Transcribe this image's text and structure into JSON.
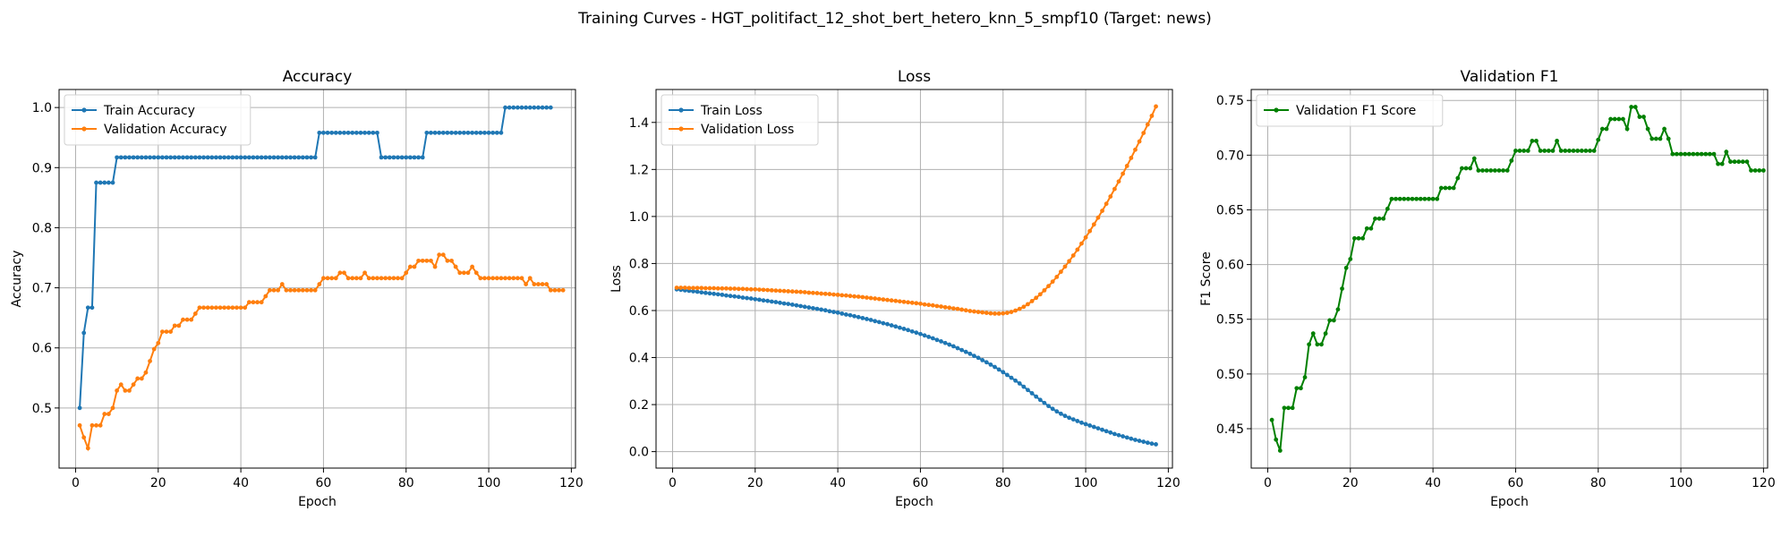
{
  "title": "Training Curves - HGT_politifact_12_shot_bert_hetero_knn_5_smpf10 (Target: news)",
  "chart_data": [
    {
      "type": "line",
      "title": "Accuracy",
      "xlabel": "Epoch",
      "ylabel": "Accuracy",
      "xlim": [
        -4,
        121
      ],
      "ylim": [
        0.4,
        1.03
      ],
      "xticks": [
        0,
        20,
        40,
        60,
        80,
        100,
        120
      ],
      "yticks": [
        0.5,
        0.6,
        0.7,
        0.8,
        0.9,
        1.0
      ],
      "ytick_labels": [
        "0.5",
        "0.6",
        "0.7",
        "0.8",
        "0.9",
        "1.0"
      ],
      "grid": true,
      "legend": "upper-left",
      "x_start": 1,
      "series": [
        {
          "name": "Train Accuracy",
          "color": "#1f77b4",
          "values": [
            0.5,
            0.625,
            0.667,
            0.667,
            0.875,
            0.875,
            0.875,
            0.875,
            0.875,
            0.917,
            0.917,
            0.917,
            0.917,
            0.917,
            0.917,
            0.917,
            0.917,
            0.917,
            0.917,
            0.917,
            0.917,
            0.917,
            0.917,
            0.917,
            0.917,
            0.917,
            0.917,
            0.917,
            0.917,
            0.917,
            0.917,
            0.917,
            0.917,
            0.917,
            0.917,
            0.917,
            0.917,
            0.917,
            0.917,
            0.917,
            0.917,
            0.917,
            0.917,
            0.917,
            0.917,
            0.917,
            0.917,
            0.917,
            0.917,
            0.917,
            0.917,
            0.917,
            0.917,
            0.917,
            0.917,
            0.917,
            0.917,
            0.917,
            0.958,
            0.958,
            0.958,
            0.958,
            0.958,
            0.958,
            0.958,
            0.958,
            0.958,
            0.958,
            0.958,
            0.958,
            0.958,
            0.958,
            0.958,
            0.917,
            0.917,
            0.917,
            0.917,
            0.917,
            0.917,
            0.917,
            0.917,
            0.917,
            0.917,
            0.917,
            0.958,
            0.958,
            0.958,
            0.958,
            0.958,
            0.958,
            0.958,
            0.958,
            0.958,
            0.958,
            0.958,
            0.958,
            0.958,
            0.958,
            0.958,
            0.958,
            0.958,
            0.958,
            0.958,
            1.0,
            1.0,
            1.0,
            1.0,
            1.0,
            1.0,
            1.0,
            1.0,
            1.0,
            1.0,
            1.0,
            1.0
          ]
        },
        {
          "name": "Validation Accuracy",
          "color": "#ff7f0e",
          "values": [
            0.471,
            0.451,
            0.433,
            0.471,
            0.471,
            0.471,
            0.49,
            0.49,
            0.5,
            0.529,
            0.539,
            0.529,
            0.529,
            0.539,
            0.549,
            0.549,
            0.559,
            0.578,
            0.598,
            0.608,
            0.627,
            0.627,
            0.627,
            0.637,
            0.637,
            0.647,
            0.647,
            0.647,
            0.657,
            0.667,
            0.667,
            0.667,
            0.667,
            0.667,
            0.667,
            0.667,
            0.667,
            0.667,
            0.667,
            0.667,
            0.667,
            0.676,
            0.676,
            0.676,
            0.676,
            0.686,
            0.696,
            0.696,
            0.696,
            0.706,
            0.696,
            0.696,
            0.696,
            0.696,
            0.696,
            0.696,
            0.696,
            0.696,
            0.706,
            0.716,
            0.716,
            0.716,
            0.716,
            0.725,
            0.725,
            0.716,
            0.716,
            0.716,
            0.716,
            0.725,
            0.716,
            0.716,
            0.716,
            0.716,
            0.716,
            0.716,
            0.716,
            0.716,
            0.716,
            0.725,
            0.735,
            0.735,
            0.745,
            0.745,
            0.745,
            0.745,
            0.735,
            0.755,
            0.755,
            0.745,
            0.745,
            0.735,
            0.725,
            0.725,
            0.725,
            0.735,
            0.725,
            0.716,
            0.716,
            0.716,
            0.716,
            0.716,
            0.716,
            0.716,
            0.716,
            0.716,
            0.716,
            0.716,
            0.706,
            0.716,
            0.706,
            0.706,
            0.706,
            0.706,
            0.696,
            0.696,
            0.696,
            0.696
          ]
        }
      ]
    },
    {
      "type": "line",
      "title": "Loss",
      "xlabel": "Epoch",
      "ylabel": "Loss",
      "xlim": [
        -4,
        121
      ],
      "ylim": [
        -0.07,
        1.54
      ],
      "xticks": [
        0,
        20,
        40,
        60,
        80,
        100,
        120
      ],
      "yticks": [
        0.0,
        0.2,
        0.4,
        0.6,
        0.8,
        1.0,
        1.2,
        1.4
      ],
      "ytick_labels": [
        "0.0",
        "0.2",
        "0.4",
        "0.6",
        "0.8",
        "1.0",
        "1.2",
        "1.4"
      ],
      "grid": true,
      "legend": "upper-left",
      "x_start": 1,
      "series": [
        {
          "name": "Train Loss",
          "color": "#1f77b4",
          "values": [
            0.69,
            0.688,
            0.686,
            0.684,
            0.682,
            0.68,
            0.677,
            0.675,
            0.673,
            0.671,
            0.669,
            0.667,
            0.664,
            0.662,
            0.66,
            0.658,
            0.655,
            0.653,
            0.651,
            0.648,
            0.646,
            0.643,
            0.641,
            0.638,
            0.636,
            0.633,
            0.63,
            0.628,
            0.625,
            0.622,
            0.619,
            0.616,
            0.613,
            0.61,
            0.607,
            0.604,
            0.601,
            0.597,
            0.594,
            0.591,
            0.587,
            0.583,
            0.58,
            0.576,
            0.572,
            0.568,
            0.564,
            0.56,
            0.555,
            0.551,
            0.546,
            0.542,
            0.537,
            0.532,
            0.527,
            0.522,
            0.517,
            0.511,
            0.506,
            0.5,
            0.494,
            0.488,
            0.482,
            0.475,
            0.469,
            0.462,
            0.455,
            0.448,
            0.44,
            0.432,
            0.424,
            0.416,
            0.407,
            0.399,
            0.389,
            0.38,
            0.37,
            0.36,
            0.349,
            0.338,
            0.326,
            0.314,
            0.302,
            0.29,
            0.276,
            0.262,
            0.248,
            0.234,
            0.22,
            0.207,
            0.194,
            0.182,
            0.171,
            0.161,
            0.152,
            0.144,
            0.137,
            0.13,
            0.123,
            0.117,
            0.111,
            0.105,
            0.099,
            0.093,
            0.087,
            0.081,
            0.075,
            0.07,
            0.065,
            0.06,
            0.055,
            0.05,
            0.046,
            0.042,
            0.038,
            0.034,
            0.031
          ]
        },
        {
          "name": "Validation Loss",
          "color": "#ff7f0e",
          "values": [
            0.697,
            0.697,
            0.697,
            0.696,
            0.696,
            0.696,
            0.696,
            0.695,
            0.695,
            0.695,
            0.694,
            0.694,
            0.694,
            0.693,
            0.693,
            0.692,
            0.692,
            0.691,
            0.69,
            0.69,
            0.689,
            0.688,
            0.687,
            0.686,
            0.685,
            0.684,
            0.683,
            0.682,
            0.681,
            0.68,
            0.679,
            0.678,
            0.676,
            0.675,
            0.674,
            0.672,
            0.671,
            0.67,
            0.668,
            0.667,
            0.665,
            0.664,
            0.662,
            0.66,
            0.659,
            0.657,
            0.655,
            0.653,
            0.651,
            0.649,
            0.647,
            0.645,
            0.643,
            0.641,
            0.639,
            0.637,
            0.635,
            0.633,
            0.631,
            0.629,
            0.626,
            0.624,
            0.622,
            0.619,
            0.617,
            0.614,
            0.612,
            0.609,
            0.607,
            0.604,
            0.601,
            0.598,
            0.596,
            0.594,
            0.592,
            0.59,
            0.588,
            0.587,
            0.587,
            0.588,
            0.59,
            0.594,
            0.6,
            0.607,
            0.616,
            0.627,
            0.64,
            0.654,
            0.669,
            0.686,
            0.704,
            0.723,
            0.743,
            0.765,
            0.787,
            0.81,
            0.834,
            0.859,
            0.885,
            0.911,
            0.938,
            0.966,
            0.995,
            1.024,
            1.054,
            1.085,
            1.117,
            1.149,
            1.182,
            1.215,
            1.249,
            1.284,
            1.319,
            1.355,
            1.391,
            1.428,
            1.468
          ]
        }
      ]
    },
    {
      "type": "line",
      "title": "Validation F1",
      "xlabel": "Epoch",
      "ylabel": "F1 Score",
      "xlim": [
        -4,
        121
      ],
      "ylim": [
        0.414,
        0.76
      ],
      "xticks": [
        0,
        20,
        40,
        60,
        80,
        100,
        120
      ],
      "yticks": [
        0.45,
        0.5,
        0.55,
        0.6,
        0.65,
        0.7,
        0.75
      ],
      "ytick_labels": [
        "0.45",
        "0.50",
        "0.55",
        "0.60",
        "0.65",
        "0.70",
        "0.75"
      ],
      "grid": true,
      "legend": "upper-left",
      "x_start": 1,
      "series": [
        {
          "name": "Validation F1 Score",
          "color": "#008000",
          "values": [
            0.458,
            0.44,
            0.43,
            0.469,
            0.469,
            0.469,
            0.487,
            0.487,
            0.497,
            0.527,
            0.537,
            0.527,
            0.527,
            0.537,
            0.549,
            0.549,
            0.559,
            0.578,
            0.597,
            0.605,
            0.624,
            0.624,
            0.624,
            0.633,
            0.633,
            0.642,
            0.642,
            0.642,
            0.651,
            0.66,
            0.66,
            0.66,
            0.66,
            0.66,
            0.66,
            0.66,
            0.66,
            0.66,
            0.66,
            0.66,
            0.66,
            0.67,
            0.67,
            0.67,
            0.67,
            0.679,
            0.688,
            0.688,
            0.688,
            0.697,
            0.686,
            0.686,
            0.686,
            0.686,
            0.686,
            0.686,
            0.686,
            0.686,
            0.695,
            0.704,
            0.704,
            0.704,
            0.704,
            0.713,
            0.713,
            0.704,
            0.704,
            0.704,
            0.704,
            0.713,
            0.704,
            0.704,
            0.704,
            0.704,
            0.704,
            0.704,
            0.704,
            0.704,
            0.704,
            0.714,
            0.724,
            0.724,
            0.733,
            0.733,
            0.733,
            0.733,
            0.724,
            0.744,
            0.744,
            0.735,
            0.735,
            0.724,
            0.715,
            0.715,
            0.715,
            0.724,
            0.715,
            0.701,
            0.701,
            0.701,
            0.701,
            0.701,
            0.701,
            0.701,
            0.701,
            0.701,
            0.701,
            0.701,
            0.692,
            0.692,
            0.703,
            0.694,
            0.694,
            0.694,
            0.694,
            0.694,
            0.686,
            0.686,
            0.686,
            0.686
          ]
        }
      ]
    }
  ]
}
